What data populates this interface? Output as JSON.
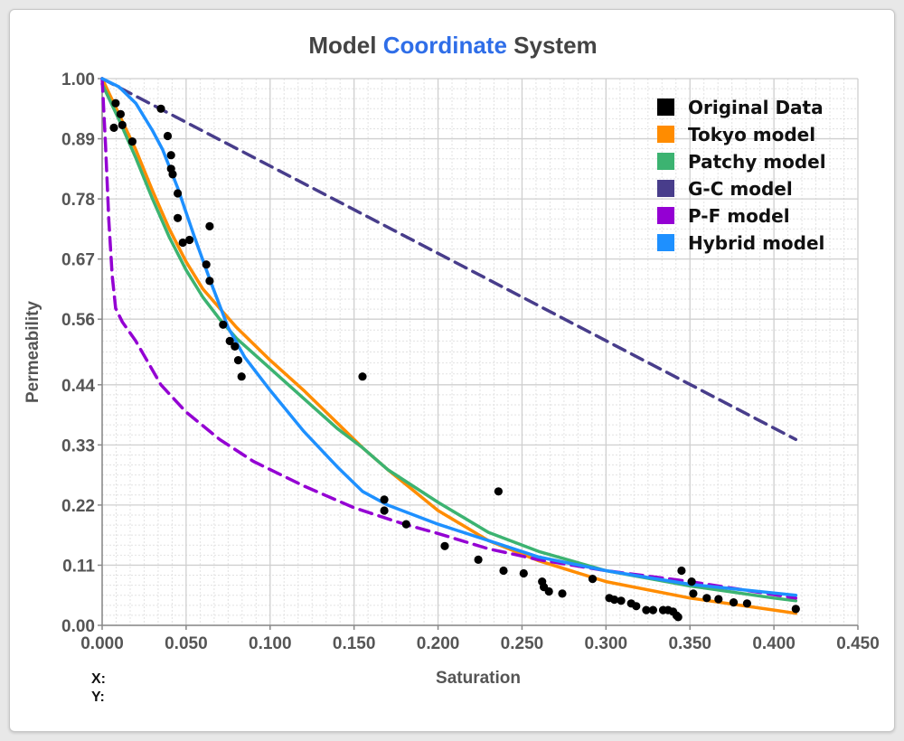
{
  "chart_data": {
    "type": "line",
    "title": {
      "parts": [
        {
          "text": "Model ",
          "color": "#444444"
        },
        {
          "text": "Coordinate",
          "color": "#2f6ee8"
        },
        {
          "text": " System",
          "color": "#444444"
        }
      ]
    },
    "xlabel": "Saturation",
    "ylabel": "Permeability",
    "xlim": [
      0,
      0.45
    ],
    "ylim": [
      0,
      1.0
    ],
    "x_ticks": [
      0.0,
      0.05,
      0.1,
      0.15,
      0.2,
      0.25,
      0.3,
      0.35,
      0.4,
      0.45
    ],
    "x_tick_labels": [
      "0.000",
      "0.050",
      "0.100",
      "0.150",
      "0.200",
      "0.250",
      "0.300",
      "0.350",
      "0.400",
      "0.450"
    ],
    "y_ticks": [
      0.0,
      0.11,
      0.22,
      0.33,
      0.44,
      0.56,
      0.67,
      0.78,
      0.89,
      1.0
    ],
    "y_tick_labels": [
      "0.00",
      "0.11",
      "0.22",
      "0.33",
      "0.44",
      "0.56",
      "0.67",
      "0.78",
      "0.89",
      "1.00"
    ],
    "grid": true,
    "legend_position": "top-right",
    "series": [
      {
        "name": "Original Data",
        "kind": "scatter",
        "color": "#000000",
        "points": [
          [
            0.008,
            0.955
          ],
          [
            0.007,
            0.91
          ],
          [
            0.011,
            0.935
          ],
          [
            0.012,
            0.915
          ],
          [
            0.018,
            0.885
          ],
          [
            0.035,
            0.945
          ],
          [
            0.039,
            0.895
          ],
          [
            0.041,
            0.86
          ],
          [
            0.041,
            0.835
          ],
          [
            0.042,
            0.825
          ],
          [
            0.045,
            0.79
          ],
          [
            0.045,
            0.745
          ],
          [
            0.048,
            0.7
          ],
          [
            0.052,
            0.705
          ],
          [
            0.062,
            0.66
          ],
          [
            0.064,
            0.73
          ],
          [
            0.064,
            0.63
          ],
          [
            0.072,
            0.55
          ],
          [
            0.076,
            0.52
          ],
          [
            0.079,
            0.51
          ],
          [
            0.081,
            0.485
          ],
          [
            0.083,
            0.455
          ],
          [
            0.155,
            0.455
          ],
          [
            0.168,
            0.23
          ],
          [
            0.168,
            0.21
          ],
          [
            0.181,
            0.185
          ],
          [
            0.204,
            0.145
          ],
          [
            0.224,
            0.12
          ],
          [
            0.236,
            0.245
          ],
          [
            0.239,
            0.1
          ],
          [
            0.251,
            0.095
          ],
          [
            0.262,
            0.08
          ],
          [
            0.263,
            0.07
          ],
          [
            0.266,
            0.062
          ],
          [
            0.274,
            0.058
          ],
          [
            0.292,
            0.085
          ],
          [
            0.302,
            0.05
          ],
          [
            0.305,
            0.047
          ],
          [
            0.309,
            0.045
          ],
          [
            0.315,
            0.04
          ],
          [
            0.318,
            0.035
          ],
          [
            0.324,
            0.028
          ],
          [
            0.328,
            0.028
          ],
          [
            0.334,
            0.028
          ],
          [
            0.337,
            0.028
          ],
          [
            0.34,
            0.025
          ],
          [
            0.342,
            0.018
          ],
          [
            0.343,
            0.015
          ],
          [
            0.345,
            0.1
          ],
          [
            0.351,
            0.08
          ],
          [
            0.352,
            0.058
          ],
          [
            0.36,
            0.05
          ],
          [
            0.367,
            0.048
          ],
          [
            0.376,
            0.042
          ],
          [
            0.384,
            0.04
          ],
          [
            0.413,
            0.03
          ]
        ]
      },
      {
        "name": "Tokyo model",
        "kind": "line",
        "dashed": false,
        "color": "#ff8c00",
        "points": [
          [
            0,
            1.0
          ],
          [
            0.01,
            0.935
          ],
          [
            0.02,
            0.87
          ],
          [
            0.03,
            0.795
          ],
          [
            0.04,
            0.725
          ],
          [
            0.05,
            0.665
          ],
          [
            0.06,
            0.615
          ],
          [
            0.07,
            0.58
          ],
          [
            0.08,
            0.545
          ],
          [
            0.1,
            0.485
          ],
          [
            0.12,
            0.43
          ],
          [
            0.14,
            0.37
          ],
          [
            0.155,
            0.325
          ],
          [
            0.17,
            0.285
          ],
          [
            0.2,
            0.21
          ],
          [
            0.23,
            0.155
          ],
          [
            0.26,
            0.118
          ],
          [
            0.3,
            0.08
          ],
          [
            0.35,
            0.05
          ],
          [
            0.4,
            0.028
          ],
          [
            0.413,
            0.022
          ]
        ]
      },
      {
        "name": "Patchy model",
        "kind": "line",
        "dashed": false,
        "color": "#3cb371",
        "points": [
          [
            0,
            0.99
          ],
          [
            0.01,
            0.925
          ],
          [
            0.02,
            0.855
          ],
          [
            0.03,
            0.78
          ],
          [
            0.04,
            0.71
          ],
          [
            0.05,
            0.65
          ],
          [
            0.06,
            0.6
          ],
          [
            0.07,
            0.56
          ],
          [
            0.08,
            0.525
          ],
          [
            0.1,
            0.47
          ],
          [
            0.12,
            0.415
          ],
          [
            0.14,
            0.36
          ],
          [
            0.155,
            0.325
          ],
          [
            0.17,
            0.285
          ],
          [
            0.2,
            0.225
          ],
          [
            0.23,
            0.17
          ],
          [
            0.26,
            0.135
          ],
          [
            0.3,
            0.1
          ],
          [
            0.35,
            0.072
          ],
          [
            0.4,
            0.05
          ],
          [
            0.413,
            0.045
          ]
        ]
      },
      {
        "name": "G-C model",
        "kind": "line",
        "dashed": true,
        "color": "#483d8b",
        "points": [
          [
            0,
            1.0
          ],
          [
            0.413,
            0.34
          ]
        ]
      },
      {
        "name": "P-F model",
        "kind": "line",
        "dashed": true,
        "color": "#9400d3",
        "points": [
          [
            0,
            1.0
          ],
          [
            0.002,
            0.88
          ],
          [
            0.004,
            0.74
          ],
          [
            0.006,
            0.64
          ],
          [
            0.008,
            0.58
          ],
          [
            0.012,
            0.555
          ],
          [
            0.02,
            0.52
          ],
          [
            0.035,
            0.44
          ],
          [
            0.05,
            0.39
          ],
          [
            0.07,
            0.34
          ],
          [
            0.09,
            0.3
          ],
          [
            0.12,
            0.255
          ],
          [
            0.15,
            0.215
          ],
          [
            0.18,
            0.185
          ],
          [
            0.2,
            0.168
          ],
          [
            0.23,
            0.14
          ],
          [
            0.26,
            0.12
          ],
          [
            0.3,
            0.1
          ],
          [
            0.35,
            0.08
          ],
          [
            0.413,
            0.05
          ]
        ]
      },
      {
        "name": "Hybrid model",
        "kind": "line",
        "dashed": false,
        "color": "#1e90ff",
        "points": [
          [
            0,
            1.0
          ],
          [
            0.01,
            0.985
          ],
          [
            0.02,
            0.955
          ],
          [
            0.03,
            0.905
          ],
          [
            0.036,
            0.87
          ],
          [
            0.045,
            0.8
          ],
          [
            0.055,
            0.71
          ],
          [
            0.065,
            0.625
          ],
          [
            0.075,
            0.545
          ],
          [
            0.085,
            0.49
          ],
          [
            0.1,
            0.43
          ],
          [
            0.12,
            0.355
          ],
          [
            0.14,
            0.29
          ],
          [
            0.155,
            0.245
          ],
          [
            0.17,
            0.22
          ],
          [
            0.2,
            0.185
          ],
          [
            0.23,
            0.155
          ],
          [
            0.26,
            0.125
          ],
          [
            0.3,
            0.1
          ],
          [
            0.35,
            0.075
          ],
          [
            0.413,
            0.055
          ]
        ]
      }
    ]
  },
  "coords": {
    "x_label": "X:",
    "y_label": "Y:"
  }
}
